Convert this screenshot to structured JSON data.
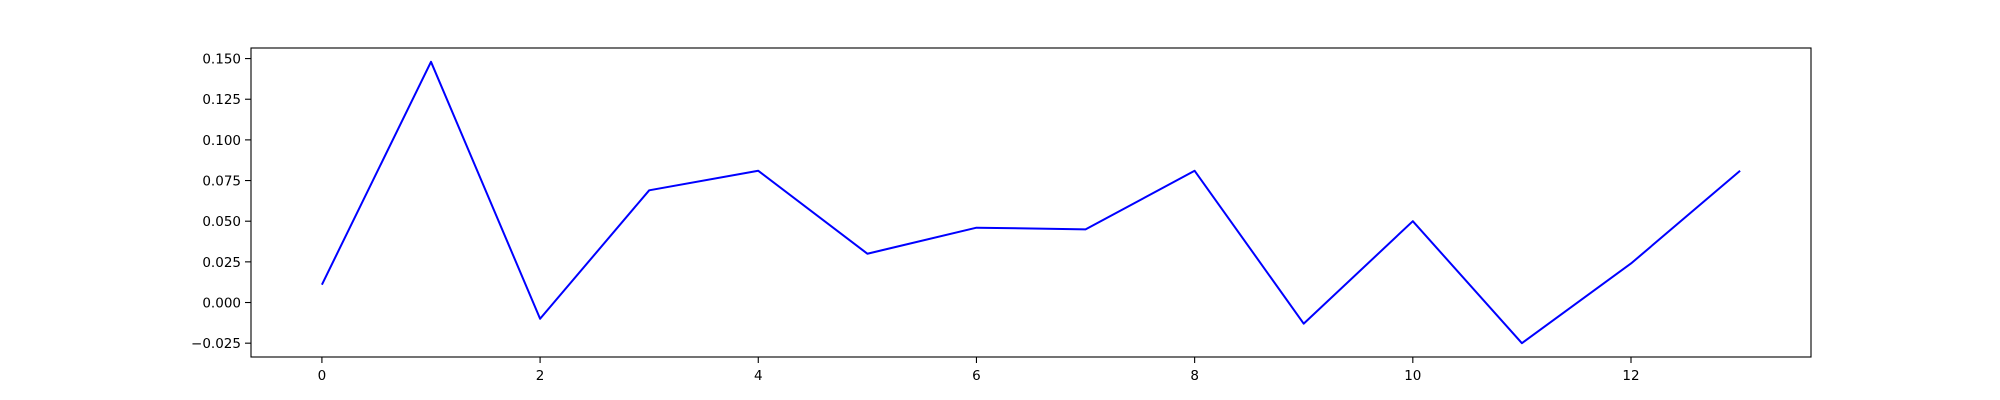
{
  "chart_data": {
    "type": "line",
    "title": "",
    "xlabel": "",
    "ylabel": "",
    "x": [
      0,
      1,
      2,
      3,
      4,
      5,
      6,
      7,
      8,
      9,
      10,
      11,
      12,
      13
    ],
    "series": [
      {
        "values": [
          0.011,
          0.148,
          -0.01,
          0.069,
          0.081,
          0.03,
          0.046,
          0.045,
          0.081,
          -0.013,
          0.05,
          -0.025,
          0.024,
          0.081
        ],
        "color": "#0000ff"
      }
    ],
    "xlim": [
      -0.65,
      13.65
    ],
    "ylim": [
      -0.0335,
      0.1565
    ],
    "x_ticks": [
      0,
      2,
      4,
      6,
      8,
      10,
      12
    ],
    "x_tick_labels": [
      "0",
      "2",
      "4",
      "6",
      "8",
      "10",
      "12"
    ],
    "y_ticks": [
      -0.025,
      0.0,
      0.025,
      0.05,
      0.075,
      0.1,
      0.125,
      0.15
    ],
    "y_tick_labels": [
      "−0.025",
      "0.000",
      "0.025",
      "0.050",
      "0.075",
      "0.100",
      "0.125",
      "0.150"
    ],
    "grid": false,
    "legend": "none"
  }
}
